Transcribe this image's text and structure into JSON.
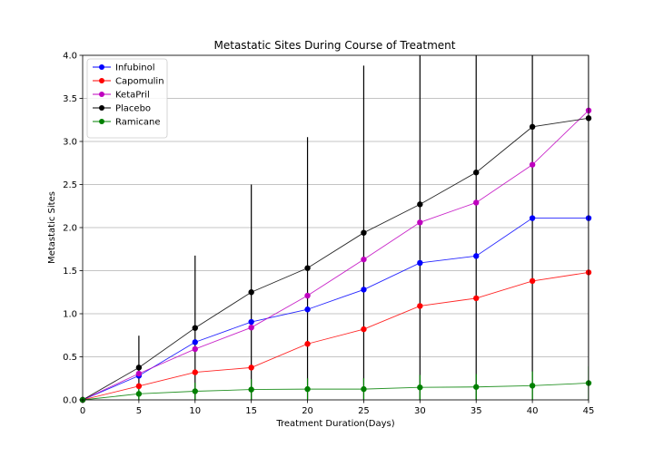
{
  "chart_data": {
    "type": "line",
    "title": "Metastatic Sites During Course of Treatment",
    "xlabel": "Treatment Duration(Days)",
    "ylabel": "Metastatic Sites",
    "xlim": [
      0,
      45
    ],
    "ylim": [
      0,
      4.0
    ],
    "x": [
      0,
      5,
      10,
      15,
      20,
      25,
      30,
      35,
      40,
      45
    ],
    "xticks": [
      0,
      5,
      10,
      15,
      20,
      25,
      30,
      35,
      40,
      45
    ],
    "xtick_labels": [
      "0",
      "5",
      "10",
      "15",
      "20",
      "25",
      "30",
      "35",
      "40",
      "45"
    ],
    "yticks": [
      0,
      0.5,
      1.0,
      1.5,
      2.0,
      2.5,
      3.0,
      3.5,
      4.0
    ],
    "ytick_labels": [
      "0.0",
      "0.5",
      "1.0",
      "1.5",
      "2.0",
      "2.5",
      "3.0",
      "3.5",
      "4.0"
    ],
    "grid": "horizontal",
    "legend_position": "top-left",
    "series": [
      {
        "name": "Infubinol",
        "color": "#0000ff",
        "values": [
          0,
          0.28,
          0.67,
          0.905,
          1.05,
          1.28,
          1.59,
          1.67,
          2.11,
          2.11
        ],
        "errors": [
          0,
          0,
          0,
          0,
          0,
          0,
          0,
          0,
          0,
          0
        ]
      },
      {
        "name": "Capomulin",
        "color": "#ff0000",
        "values": [
          0,
          0.16,
          0.32,
          0.375,
          0.65,
          0.82,
          1.09,
          1.18,
          1.38,
          1.48
        ],
        "errors": [
          0,
          0,
          0,
          0,
          0,
          0,
          0,
          0,
          0,
          0
        ]
      },
      {
        "name": "KetaPril",
        "color": "#bf00bf",
        "values": [
          0,
          0.305,
          0.59,
          0.84,
          1.21,
          1.63,
          2.06,
          2.29,
          2.73,
          3.36
        ],
        "errors": [
          0,
          0,
          0,
          0,
          0,
          0,
          0,
          0,
          0,
          0
        ]
      },
      {
        "name": "Placebo",
        "color": "#000000",
        "values": [
          0,
          0.375,
          0.835,
          1.25,
          1.53,
          1.94,
          2.27,
          2.64,
          3.17,
          3.27
        ],
        "errors": [
          0,
          0.37,
          0.84,
          1.25,
          1.52,
          1.94,
          2.27,
          2.64,
          3.17,
          3.27
        ]
      },
      {
        "name": "Ramicane",
        "color": "#008000",
        "values": [
          0,
          0.07,
          0.1,
          0.12,
          0.125,
          0.125,
          0.145,
          0.15,
          0.165,
          0.195
        ],
        "errors": [
          0,
          0.07,
          0.1,
          0.12,
          0.125,
          0.125,
          0.145,
          0.15,
          0.165,
          0.195
        ]
      }
    ]
  }
}
